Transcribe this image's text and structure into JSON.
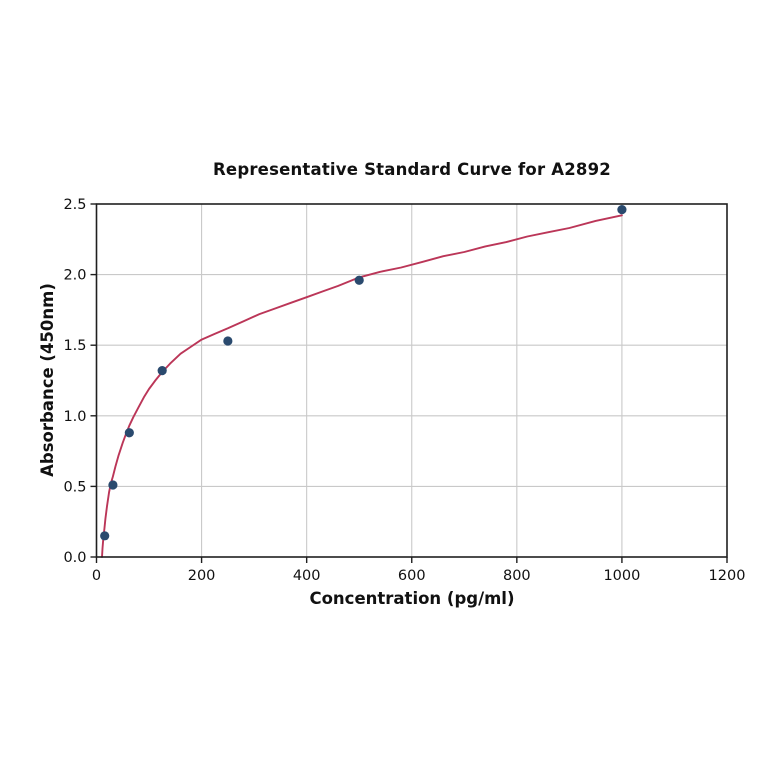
{
  "chart_data": {
    "type": "scatter",
    "title": "Representative Standard Curve for A2892",
    "xlabel": "Concentration (pg/ml)",
    "ylabel": "Absorbance (450nm)",
    "xlim": [
      0,
      1200
    ],
    "ylim": [
      0.0,
      2.5
    ],
    "x_ticks": [
      0,
      200,
      400,
      600,
      800,
      1000,
      1200
    ],
    "x_tick_labels": [
      "0",
      "200",
      "400",
      "600",
      "800",
      "1000",
      "1200"
    ],
    "y_ticks": [
      0.0,
      0.5,
      1.0,
      1.5,
      2.0,
      2.5
    ],
    "y_tick_labels": [
      "0.0",
      "0.5",
      "1.0",
      "1.5",
      "2.0",
      "2.5"
    ],
    "grid": true,
    "legend": "none",
    "points": [
      {
        "x": 15.6,
        "y": 0.15
      },
      {
        "x": 31.25,
        "y": 0.51
      },
      {
        "x": 62.5,
        "y": 0.88
      },
      {
        "x": 125,
        "y": 1.32
      },
      {
        "x": 250,
        "y": 1.53
      },
      {
        "x": 500,
        "y": 1.96
      },
      {
        "x": 1000,
        "y": 2.46
      }
    ],
    "curve_points": [
      [
        10.5,
        0.0
      ],
      [
        11.5,
        0.06
      ],
      [
        13,
        0.13
      ],
      [
        15,
        0.2
      ],
      [
        17,
        0.27
      ],
      [
        20,
        0.36
      ],
      [
        24,
        0.46
      ],
      [
        28,
        0.53
      ],
      [
        31.25,
        0.57
      ],
      [
        36,
        0.64
      ],
      [
        42,
        0.72
      ],
      [
        50,
        0.81
      ],
      [
        56,
        0.87
      ],
      [
        62.5,
        0.93
      ],
      [
        70,
        0.99
      ],
      [
        80,
        1.06
      ],
      [
        90,
        1.13
      ],
      [
        100,
        1.19
      ],
      [
        112,
        1.25
      ],
      [
        125,
        1.31
      ],
      [
        140,
        1.37
      ],
      [
        160,
        1.44
      ],
      [
        180,
        1.49
      ],
      [
        200,
        1.54
      ],
      [
        225,
        1.58
      ],
      [
        250,
        1.62
      ],
      [
        280,
        1.67
      ],
      [
        310,
        1.72
      ],
      [
        340,
        1.76
      ],
      [
        370,
        1.8
      ],
      [
        400,
        1.84
      ],
      [
        430,
        1.88
      ],
      [
        460,
        1.92
      ],
      [
        500,
        1.98
      ],
      [
        540,
        2.02
      ],
      [
        580,
        2.05
      ],
      [
        620,
        2.09
      ],
      [
        660,
        2.13
      ],
      [
        700,
        2.16
      ],
      [
        740,
        2.2
      ],
      [
        780,
        2.23
      ],
      [
        820,
        2.27
      ],
      [
        860,
        2.3
      ],
      [
        900,
        2.33
      ],
      [
        950,
        2.38
      ],
      [
        1000,
        2.42
      ]
    ],
    "colors": {
      "curve": "#bb3658",
      "marker": "#2a4a6e",
      "grid": "#c9c9c9",
      "axis": "#1f1f1f",
      "tick_text": "#111111",
      "background": "#ffffff"
    }
  }
}
